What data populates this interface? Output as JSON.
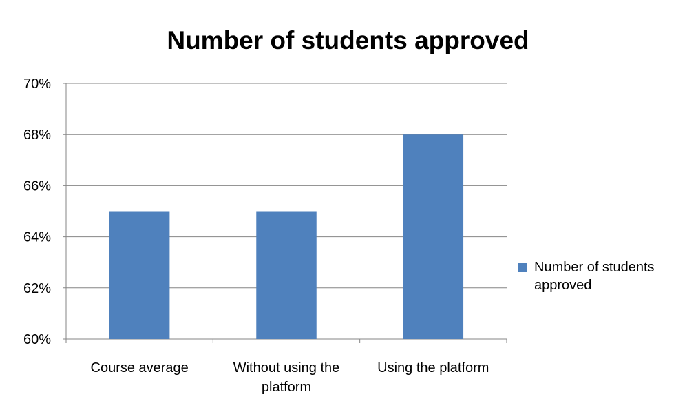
{
  "chart_data": {
    "type": "bar",
    "title": "Number of students approved",
    "categories": [
      "Course average",
      "Without using the platform",
      "Using the platform"
    ],
    "category_label_lines": [
      [
        "Course average"
      ],
      [
        "Without using the",
        "platform"
      ],
      [
        "Using the platform"
      ]
    ],
    "series": [
      {
        "name": "Number of students approved",
        "values": [
          0.65,
          0.65,
          0.68
        ]
      }
    ],
    "xlabel": "",
    "ylabel": "",
    "ylim": [
      0.6,
      0.7
    ],
    "yticks": [
      0.6,
      0.62,
      0.64,
      0.66,
      0.68,
      0.7
    ],
    "ytick_labels": [
      "60%",
      "62%",
      "64%",
      "66%",
      "68%",
      "70%"
    ],
    "grid": true,
    "legend": {
      "position": "right",
      "entries": [
        "Number of students",
        "approved"
      ]
    },
    "colors": {
      "bar": "#4f81bd",
      "grid": "#868686",
      "axis": "#868686"
    }
  }
}
